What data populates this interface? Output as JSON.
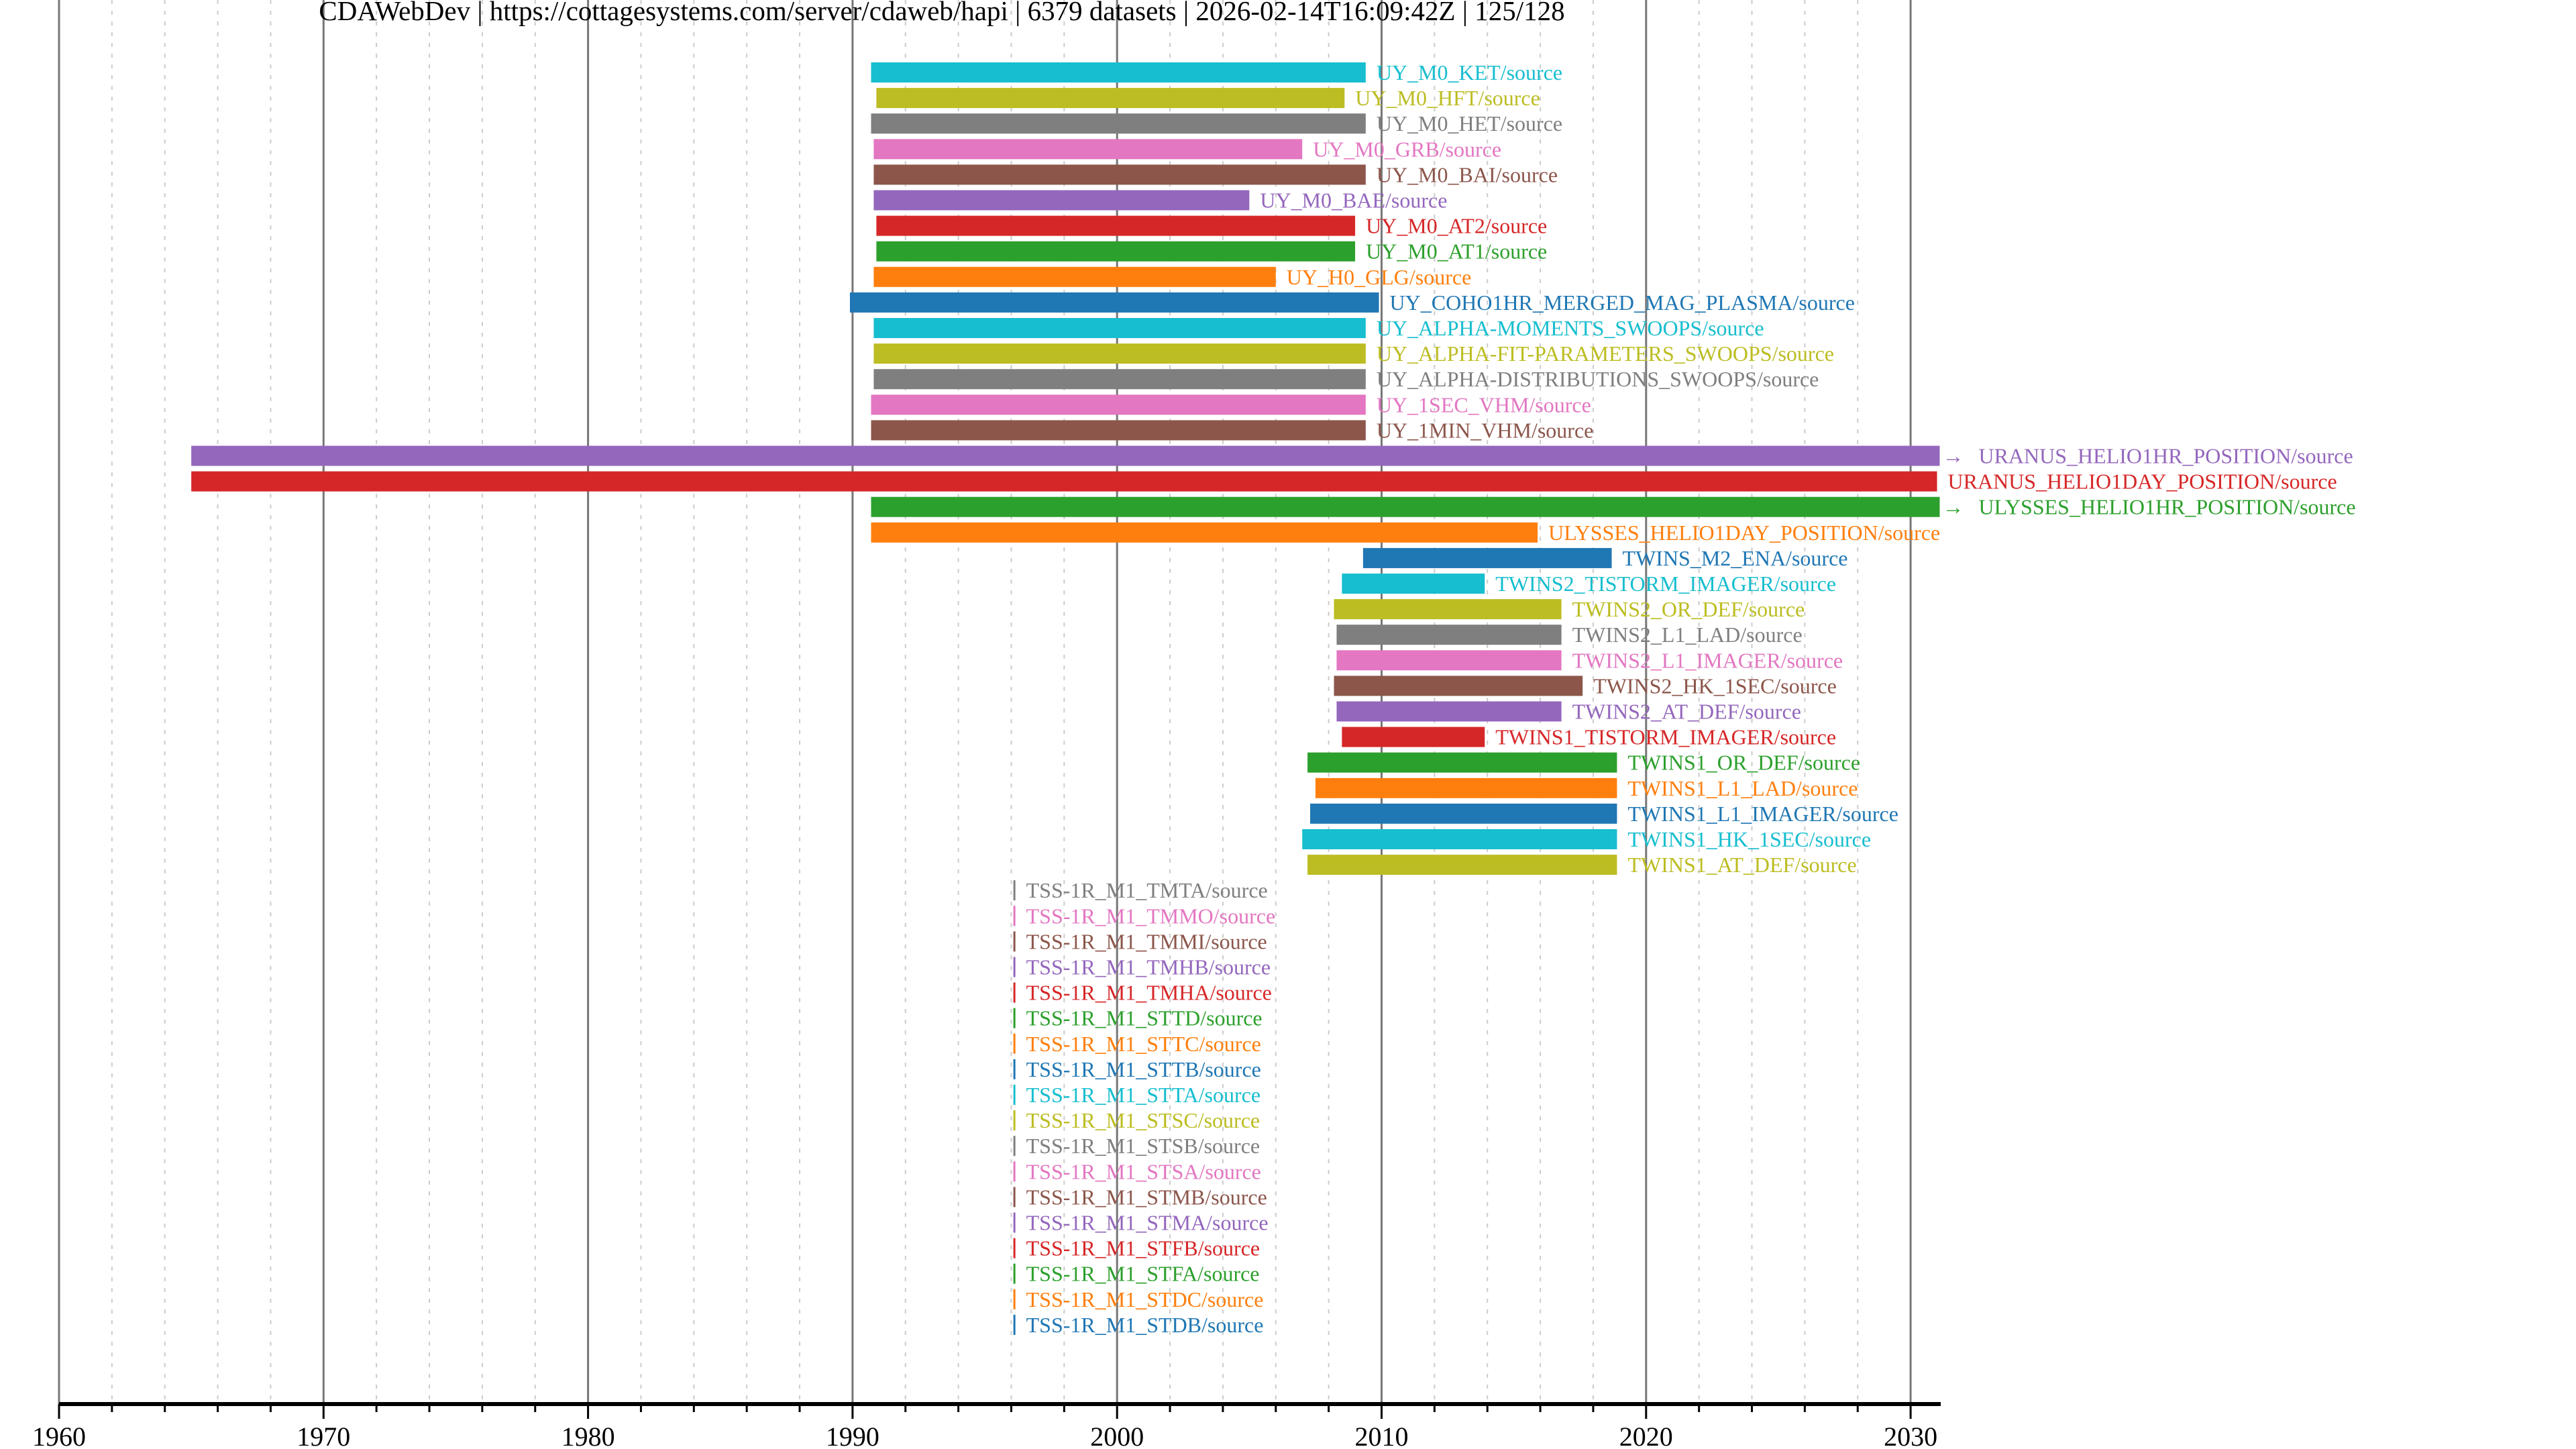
{
  "chart_data": {
    "type": "bar",
    "orientation": "horizontal-timeline",
    "title": "CDAWebDev | https://cottagesystems.com/server/cdaweb/hapi | 6379 datasets | 2026-02-14T16:09:42Z | 125/128",
    "xlabel": "",
    "ylabel": "",
    "xlim": [
      1960,
      2031.2
    ],
    "x_ticks": [
      1960,
      1970,
      1980,
      1990,
      2000,
      2010,
      2020,
      2030
    ],
    "x_minor_tick_step": 2,
    "grid": "major solid, minor dotted",
    "palette": [
      "#1f77b4",
      "#ff7f0e",
      "#2ca02c",
      "#d62728",
      "#9467bd",
      "#8c564b",
      "#e377c2",
      "#7f7f7f",
      "#bcbd22",
      "#17becf"
    ],
    "series": [
      {
        "name": "UY_M0_KET/source",
        "start": 1990.7,
        "end": 2009.4,
        "color": "#17becf"
      },
      {
        "name": "UY_M0_HFT/source",
        "start": 1990.9,
        "end": 2008.6,
        "color": "#bcbd22"
      },
      {
        "name": "UY_M0_HET/source",
        "start": 1990.7,
        "end": 2009.4,
        "color": "#7f7f7f"
      },
      {
        "name": "UY_M0_GRB/source",
        "start": 1990.8,
        "end": 2007.0,
        "color": "#e377c2"
      },
      {
        "name": "UY_M0_BAI/source",
        "start": 1990.8,
        "end": 2009.4,
        "color": "#8c564b"
      },
      {
        "name": "UY_M0_BAE/source",
        "start": 1990.8,
        "end": 2005.0,
        "color": "#9467bd"
      },
      {
        "name": "UY_M0_AT2/source",
        "start": 1990.9,
        "end": 2009.0,
        "color": "#d62728"
      },
      {
        "name": "UY_M0_AT1/source",
        "start": 1990.9,
        "end": 2009.0,
        "color": "#2ca02c"
      },
      {
        "name": "UY_H0_GLG/source",
        "start": 1990.8,
        "end": 2006.0,
        "color": "#ff7f0e"
      },
      {
        "name": "UY_COHO1HR_MERGED_MAG_PLASMA/source",
        "start": 1989.9,
        "end": 2009.9,
        "color": "#1f77b4"
      },
      {
        "name": "UY_ALPHA-MOMENTS_SWOOPS/source",
        "start": 1990.8,
        "end": 2009.4,
        "color": "#17becf"
      },
      {
        "name": "UY_ALPHA-FIT-PARAMETERS_SWOOPS/source",
        "start": 1990.8,
        "end": 2009.4,
        "color": "#bcbd22"
      },
      {
        "name": "UY_ALPHA-DISTRIBUTIONS_SWOOPS/source",
        "start": 1990.8,
        "end": 2009.4,
        "color": "#7f7f7f"
      },
      {
        "name": "UY_1SEC_VHM/source",
        "start": 1990.7,
        "end": 2009.4,
        "color": "#e377c2"
      },
      {
        "name": "UY_1MIN_VHM/source",
        "start": 1990.7,
        "end": 2009.4,
        "color": "#8c564b"
      },
      {
        "name": "URANUS_HELIO1HR_POSITION/source",
        "start": 1965.0,
        "end": 2031.1,
        "color": "#9467bd",
        "continues": true
      },
      {
        "name": "URANUS_HELIO1DAY_POSITION/source",
        "start": 1965.0,
        "end": 2031.0,
        "color": "#d62728"
      },
      {
        "name": "ULYSSES_HELIO1HR_POSITION/source",
        "start": 1990.7,
        "end": 2031.1,
        "color": "#2ca02c",
        "continues": true
      },
      {
        "name": "ULYSSES_HELIO1DAY_POSITION/source",
        "start": 1990.7,
        "end": 2015.9,
        "color": "#ff7f0e"
      },
      {
        "name": "TWINS_M2_ENA/source",
        "start": 2009.3,
        "end": 2018.7,
        "color": "#1f77b4"
      },
      {
        "name": "TWINS2_TISTORM_IMAGER/source",
        "start": 2008.5,
        "end": 2013.9,
        "color": "#17becf"
      },
      {
        "name": "TWINS2_OR_DEF/source",
        "start": 2008.2,
        "end": 2016.8,
        "color": "#bcbd22"
      },
      {
        "name": "TWINS2_L1_LAD/source",
        "start": 2008.3,
        "end": 2016.8,
        "color": "#7f7f7f"
      },
      {
        "name": "TWINS2_L1_IMAGER/source",
        "start": 2008.3,
        "end": 2016.8,
        "color": "#e377c2"
      },
      {
        "name": "TWINS2_HK_1SEC/source",
        "start": 2008.2,
        "end": 2017.6,
        "color": "#8c564b"
      },
      {
        "name": "TWINS2_AT_DEF/source",
        "start": 2008.3,
        "end": 2016.8,
        "color": "#9467bd"
      },
      {
        "name": "TWINS1_TISTORM_IMAGER/source",
        "start": 2008.5,
        "end": 2013.9,
        "color": "#d62728"
      },
      {
        "name": "TWINS1_OR_DEF/source",
        "start": 2007.2,
        "end": 2018.9,
        "color": "#2ca02c"
      },
      {
        "name": "TWINS1_L1_LAD/source",
        "start": 2007.5,
        "end": 2018.9,
        "color": "#ff7f0e"
      },
      {
        "name": "TWINS1_L1_IMAGER/source",
        "start": 2007.3,
        "end": 2018.9,
        "color": "#1f77b4"
      },
      {
        "name": "TWINS1_HK_1SEC/source",
        "start": 2007.0,
        "end": 2018.9,
        "color": "#17becf"
      },
      {
        "name": "TWINS1_AT_DEF/source",
        "start": 2007.2,
        "end": 2018.9,
        "color": "#bcbd22"
      },
      {
        "name": "TSS-1R_M1_TMTA/source",
        "start": 1996.08,
        "end": 1996.1,
        "color": "#7f7f7f"
      },
      {
        "name": "TSS-1R_M1_TMMO/source",
        "start": 1996.08,
        "end": 1996.1,
        "color": "#e377c2"
      },
      {
        "name": "TSS-1R_M1_TMMI/source",
        "start": 1996.08,
        "end": 1996.1,
        "color": "#8c564b"
      },
      {
        "name": "TSS-1R_M1_TMHB/source",
        "start": 1996.08,
        "end": 1996.1,
        "color": "#9467bd"
      },
      {
        "name": "TSS-1R_M1_TMHA/source",
        "start": 1996.08,
        "end": 1996.1,
        "color": "#d62728"
      },
      {
        "name": "TSS-1R_M1_STTD/source",
        "start": 1996.08,
        "end": 1996.1,
        "color": "#2ca02c"
      },
      {
        "name": "TSS-1R_M1_STTC/source",
        "start": 1996.08,
        "end": 1996.1,
        "color": "#ff7f0e"
      },
      {
        "name": "TSS-1R_M1_STTB/source",
        "start": 1996.08,
        "end": 1996.1,
        "color": "#1f77b4"
      },
      {
        "name": "TSS-1R_M1_STTA/source",
        "start": 1996.08,
        "end": 1996.1,
        "color": "#17becf"
      },
      {
        "name": "TSS-1R_M1_STSC/source",
        "start": 1996.08,
        "end": 1996.1,
        "color": "#bcbd22"
      },
      {
        "name": "TSS-1R_M1_STSB/source",
        "start": 1996.08,
        "end": 1996.1,
        "color": "#7f7f7f"
      },
      {
        "name": "TSS-1R_M1_STSA/source",
        "start": 1996.08,
        "end": 1996.1,
        "color": "#e377c2"
      },
      {
        "name": "TSS-1R_M1_STMB/source",
        "start": 1996.08,
        "end": 1996.1,
        "color": "#8c564b"
      },
      {
        "name": "TSS-1R_M1_STMA/source",
        "start": 1996.08,
        "end": 1996.1,
        "color": "#9467bd"
      },
      {
        "name": "TSS-1R_M1_STFB/source",
        "start": 1996.08,
        "end": 1996.1,
        "color": "#d62728"
      },
      {
        "name": "TSS-1R_M1_STFA/source",
        "start": 1996.08,
        "end": 1996.1,
        "color": "#2ca02c"
      },
      {
        "name": "TSS-1R_M1_STDC/source",
        "start": 1996.08,
        "end": 1996.1,
        "color": "#ff7f0e"
      },
      {
        "name": "TSS-1R_M1_STDB/source",
        "start": 1996.08,
        "end": 1996.1,
        "color": "#1f77b4"
      }
    ]
  }
}
